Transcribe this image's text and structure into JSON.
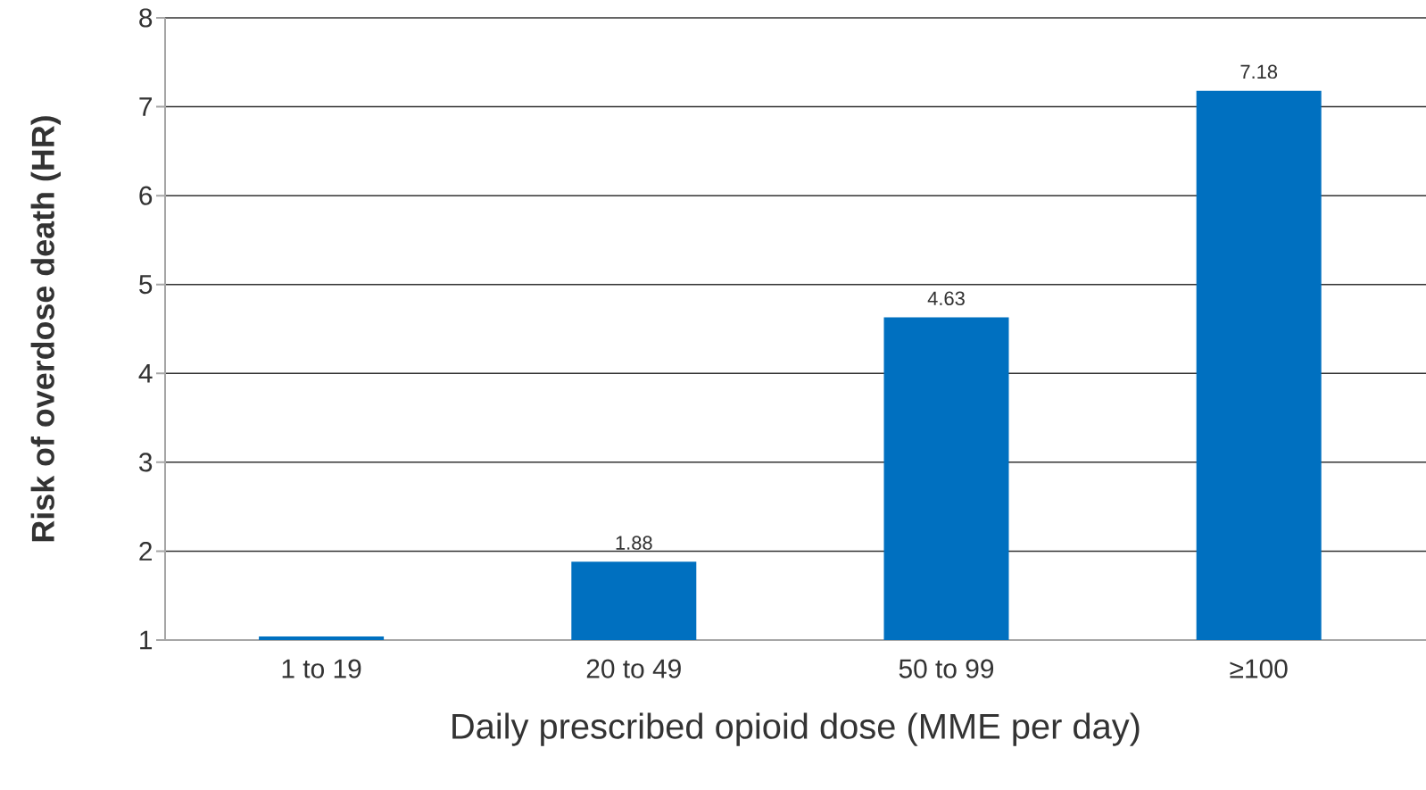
{
  "chart_data": {
    "type": "bar",
    "xlabel": "Daily prescribed opioid dose (MME per day)",
    "ylabel": "Risk of overdose death (HR)",
    "categories": [
      "1 to 19",
      "20 to 49",
      "50 to 99",
      "≥100"
    ],
    "values": [
      1.04,
      1.88,
      4.63,
      7.18
    ],
    "value_labels": [
      null,
      "1.88",
      "4.63",
      "7.18"
    ],
    "color": "#0070c0",
    "ylim": [
      1,
      8
    ],
    "yticks": [
      1,
      2,
      3,
      4,
      5,
      6,
      7,
      8
    ],
    "grid": "y"
  }
}
